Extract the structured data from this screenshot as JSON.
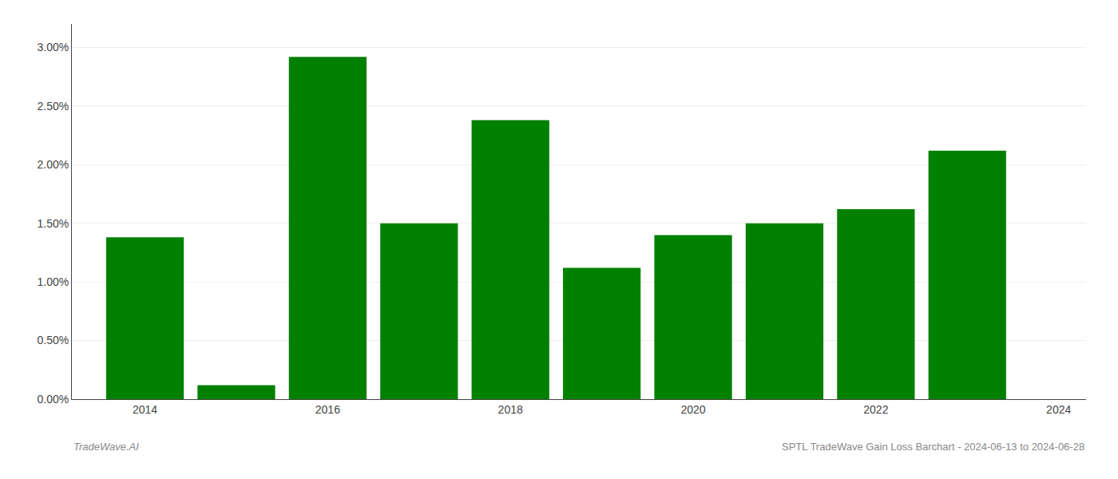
{
  "chart_data": {
    "type": "bar",
    "x": [
      2014,
      2015,
      2016,
      2017,
      2018,
      2019,
      2020,
      2021,
      2022,
      2023
    ],
    "values": [
      0.0138,
      0.0012,
      0.0292,
      0.015,
      0.0238,
      0.0112,
      0.014,
      0.015,
      0.0162,
      0.0212
    ],
    "color": "#008000",
    "xlim": [
      2013.2,
      2024.3
    ],
    "xticks": [
      2014,
      2016,
      2018,
      2020,
      2022,
      2024
    ],
    "ylim": [
      0,
      0.032
    ],
    "yticks": [
      {
        "value": 0.0,
        "label": "0.00%"
      },
      {
        "value": 0.005,
        "label": "0.50%"
      },
      {
        "value": 0.01,
        "label": "1.00%"
      },
      {
        "value": 0.015,
        "label": "1.50%"
      },
      {
        "value": 0.02,
        "label": "2.00%"
      },
      {
        "value": 0.025,
        "label": "2.50%"
      },
      {
        "value": 0.03,
        "label": "3.00%"
      }
    ],
    "grid": true,
    "annotations": [
      "TradeWave.AI",
      "SPTL TradeWave Gain Loss Barchart - 2024-06-13 to 2024-06-28"
    ]
  }
}
